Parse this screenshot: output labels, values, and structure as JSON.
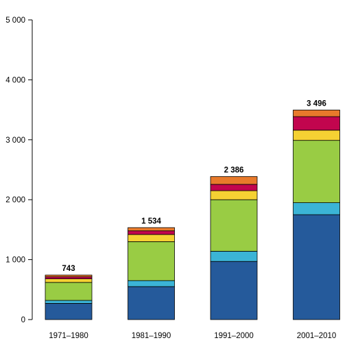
{
  "chart_data": {
    "type": "bar",
    "stacked": true,
    "title": "",
    "xlabel": "",
    "ylabel": "",
    "categories": [
      "1971–1980",
      "1981–1990",
      "1991–2000",
      "2001–2010"
    ],
    "totals": [
      743,
      1534,
      2386,
      3496
    ],
    "total_labels": [
      "743",
      "1 534",
      "2 386",
      "3 496"
    ],
    "series": [
      {
        "color": "#255a9b",
        "values": [
          270,
          550,
          970,
          1750
        ]
      },
      {
        "color": "#3bb4d6",
        "values": [
          50,
          100,
          170,
          200
        ]
      },
      {
        "color": "#99cc44",
        "values": [
          300,
          650,
          860,
          1040
        ]
      },
      {
        "color": "#f5d133",
        "values": [
          60,
          120,
          150,
          170
        ]
      },
      {
        "color": "#c2054e",
        "values": [
          33,
          60,
          106,
          226
        ]
      },
      {
        "color": "#e87a2b",
        "values": [
          30,
          54,
          130,
          110
        ]
      }
    ],
    "ylim": [
      0,
      5000
    ],
    "yticks": [
      0,
      1000,
      2000,
      3000,
      4000,
      5000
    ],
    "ytick_labels": [
      "0",
      "1 000",
      "2 000",
      "3 000",
      "4 000",
      "5 000"
    ],
    "grid": false,
    "legend": "none"
  }
}
